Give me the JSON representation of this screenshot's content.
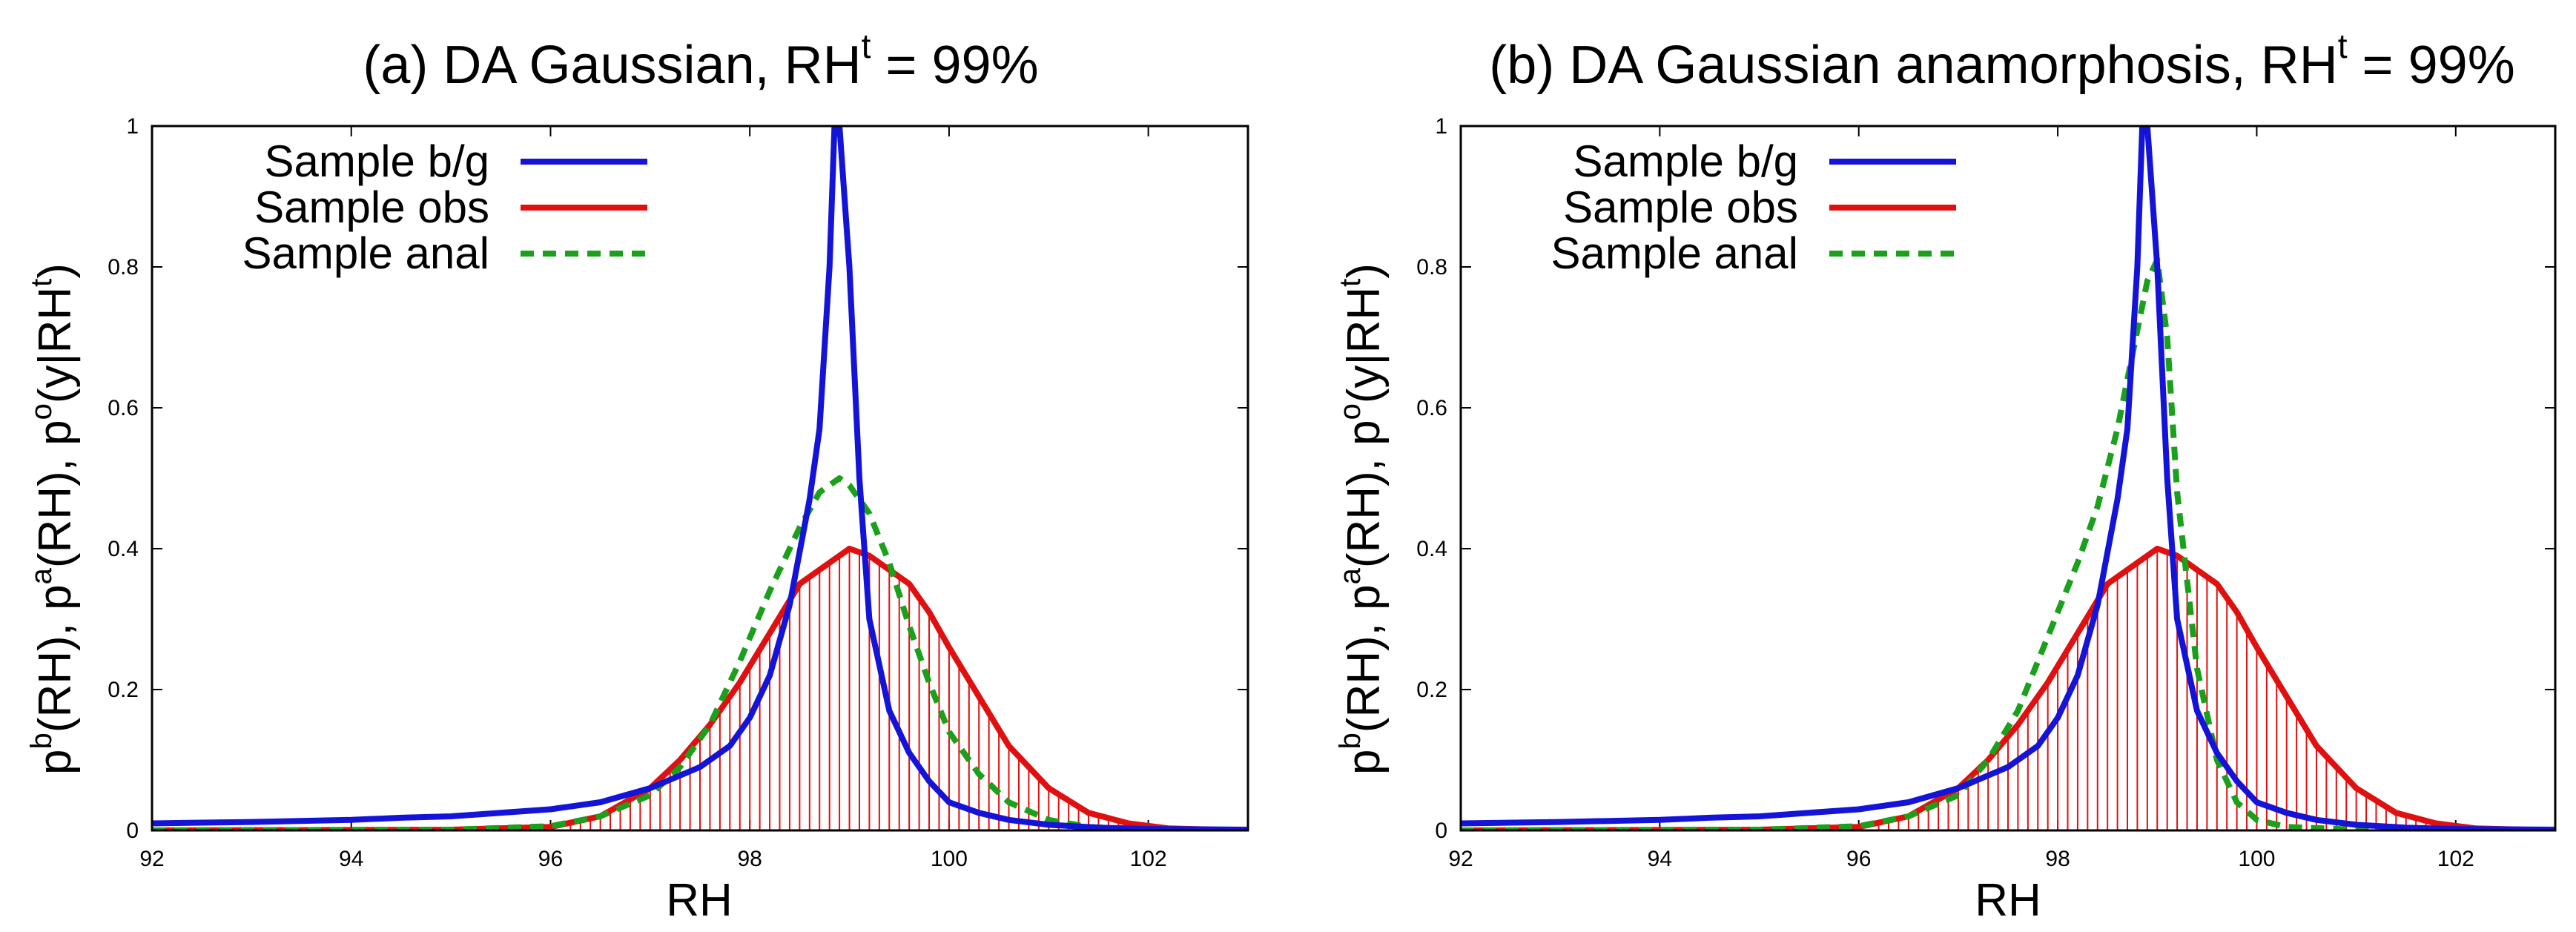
{
  "chart_data": [
    {
      "type": "line",
      "title": "(a) DA Gaussian, RH",
      "title_sup": "t",
      "title_suffix": " = 99%",
      "xlabel": "RH",
      "ylabel_parts": [
        "p",
        "b",
        "(RH), p",
        "a",
        "(RH), p",
        "o",
        "(y|RH",
        "t",
        ")"
      ],
      "xlim": [
        92,
        103
      ],
      "ylim": [
        0,
        1
      ],
      "xticks": [
        "92",
        "94",
        "96",
        "98",
        "100",
        "102"
      ],
      "xtick_values": [
        92,
        94,
        96,
        98,
        100,
        102
      ],
      "yticks": [
        "0",
        "0.2",
        "0.4",
        "0.6",
        "0.8",
        "1"
      ],
      "ytick_values": [
        0,
        0.2,
        0.4,
        0.6,
        0.8,
        1
      ],
      "legend": [
        {
          "label": "Sample b/g",
          "color": "#1414d8",
          "style": "solid"
        },
        {
          "label": "Sample obs",
          "color": "#e01010",
          "style": "solid"
        },
        {
          "label": "Sample anal",
          "color": "#1aa01a",
          "style": "dashed"
        }
      ],
      "series": [
        {
          "name": "Sample b/g",
          "color": "#1414d8",
          "x": [
            92,
            93,
            94,
            94.5,
            95,
            95.5,
            96,
            96.5,
            97,
            97.5,
            97.8,
            98,
            98.2,
            98.4,
            98.6,
            98.7,
            98.8,
            98.85,
            98.9,
            99.0,
            99.1,
            99.2,
            99.4,
            99.6,
            99.8,
            100,
            100.3,
            100.6,
            101,
            101.5,
            102,
            103
          ],
          "y": [
            0.01,
            0.012,
            0.015,
            0.018,
            0.02,
            0.025,
            0.03,
            0.04,
            0.06,
            0.09,
            0.12,
            0.16,
            0.22,
            0.32,
            0.47,
            0.57,
            0.8,
            1.0,
            1.05,
            0.8,
            0.5,
            0.3,
            0.17,
            0.11,
            0.07,
            0.04,
            0.025,
            0.015,
            0.008,
            0.004,
            0.002,
            0.001
          ]
        },
        {
          "name": "Sample obs",
          "color": "#e01010",
          "x": [
            92,
            95,
            96,
            96.5,
            97,
            97.3,
            97.6,
            97.9,
            98.2,
            98.5,
            98.7,
            98.9,
            99.0,
            99.2,
            99.4,
            99.6,
            99.8,
            100,
            100.3,
            100.6,
            101,
            101.4,
            101.8,
            102.2,
            103
          ],
          "y": [
            0,
            0.001,
            0.005,
            0.02,
            0.06,
            0.1,
            0.15,
            0.21,
            0.28,
            0.35,
            0.37,
            0.39,
            0.4,
            0.39,
            0.37,
            0.35,
            0.31,
            0.26,
            0.19,
            0.12,
            0.06,
            0.025,
            0.01,
            0.003,
            0
          ]
        },
        {
          "name": "Sample anal",
          "color": "#1aa01a",
          "x": [
            92,
            95,
            96,
            96.5,
            97,
            97.3,
            97.6,
            97.9,
            98.2,
            98.5,
            98.7,
            98.9,
            99.0,
            99.2,
            99.4,
            99.6,
            99.8,
            100,
            100.3,
            100.6,
            101,
            101.4,
            102,
            103
          ],
          "y": [
            0,
            0.001,
            0.006,
            0.02,
            0.05,
            0.09,
            0.15,
            0.24,
            0.34,
            0.43,
            0.48,
            0.5,
            0.49,
            0.45,
            0.38,
            0.29,
            0.21,
            0.14,
            0.08,
            0.04,
            0.015,
            0.005,
            0.001,
            0
          ]
        }
      ]
    },
    {
      "type": "line",
      "title": "(b) DA Gaussian anamorphosis, RH",
      "title_sup": "t",
      "title_suffix": " = 99%",
      "xlabel": "RH",
      "ylabel_parts": [
        "p",
        "b",
        "(RH), p",
        "a",
        "(RH), p",
        "o",
        "(y|RH",
        "t",
        ")"
      ],
      "xlim": [
        92,
        103
      ],
      "ylim": [
        0,
        1
      ],
      "xticks": [
        "92",
        "94",
        "96",
        "98",
        "100",
        "102"
      ],
      "xtick_values": [
        92,
        94,
        96,
        98,
        100,
        102
      ],
      "yticks": [
        "0",
        "0.2",
        "0.4",
        "0.6",
        "0.8",
        "1"
      ],
      "ytick_values": [
        0,
        0.2,
        0.4,
        0.6,
        0.8,
        1
      ],
      "legend": [
        {
          "label": "Sample b/g",
          "color": "#1414d8",
          "style": "solid"
        },
        {
          "label": "Sample obs",
          "color": "#e01010",
          "style": "solid"
        },
        {
          "label": "Sample anal",
          "color": "#1aa01a",
          "style": "dashed"
        }
      ],
      "series": [
        {
          "name": "Sample b/g",
          "color": "#1414d8",
          "x": [
            92,
            93,
            94,
            94.5,
            95,
            95.5,
            96,
            96.5,
            97,
            97.5,
            97.8,
            98,
            98.2,
            98.4,
            98.6,
            98.7,
            98.8,
            98.85,
            98.9,
            99.0,
            99.1,
            99.2,
            99.4,
            99.6,
            99.8,
            100,
            100.3,
            100.6,
            101,
            101.5,
            102,
            103
          ],
          "y": [
            0.01,
            0.012,
            0.015,
            0.018,
            0.02,
            0.025,
            0.03,
            0.04,
            0.06,
            0.09,
            0.12,
            0.16,
            0.22,
            0.32,
            0.47,
            0.57,
            0.8,
            1.0,
            1.05,
            0.8,
            0.5,
            0.3,
            0.17,
            0.11,
            0.07,
            0.04,
            0.025,
            0.015,
            0.008,
            0.004,
            0.002,
            0.001
          ]
        },
        {
          "name": "Sample obs",
          "color": "#e01010",
          "x": [
            92,
            95,
            96,
            96.5,
            97,
            97.3,
            97.6,
            97.9,
            98.2,
            98.5,
            98.7,
            98.9,
            99.0,
            99.2,
            99.4,
            99.6,
            99.8,
            100,
            100.3,
            100.6,
            101,
            101.4,
            101.8,
            102.2,
            103
          ],
          "y": [
            0,
            0.001,
            0.005,
            0.02,
            0.06,
            0.1,
            0.15,
            0.21,
            0.28,
            0.35,
            0.37,
            0.39,
            0.4,
            0.39,
            0.37,
            0.35,
            0.31,
            0.26,
            0.19,
            0.12,
            0.06,
            0.025,
            0.01,
            0.003,
            0
          ]
        },
        {
          "name": "Sample anal",
          "color": "#1aa01a",
          "x": [
            92,
            95,
            96,
            96.5,
            97,
            97.3,
            97.6,
            97.8,
            98.0,
            98.2,
            98.4,
            98.6,
            98.7,
            98.8,
            98.9,
            99.0,
            99.1,
            99.2,
            99.4,
            99.6,
            99.8,
            100,
            100.3,
            101,
            103
          ],
          "y": [
            0,
            0.001,
            0.006,
            0.02,
            0.05,
            0.1,
            0.17,
            0.24,
            0.31,
            0.38,
            0.46,
            0.57,
            0.64,
            0.71,
            0.78,
            0.81,
            0.7,
            0.48,
            0.23,
            0.1,
            0.04,
            0.015,
            0.005,
            0.001,
            0
          ]
        }
      ]
    }
  ]
}
